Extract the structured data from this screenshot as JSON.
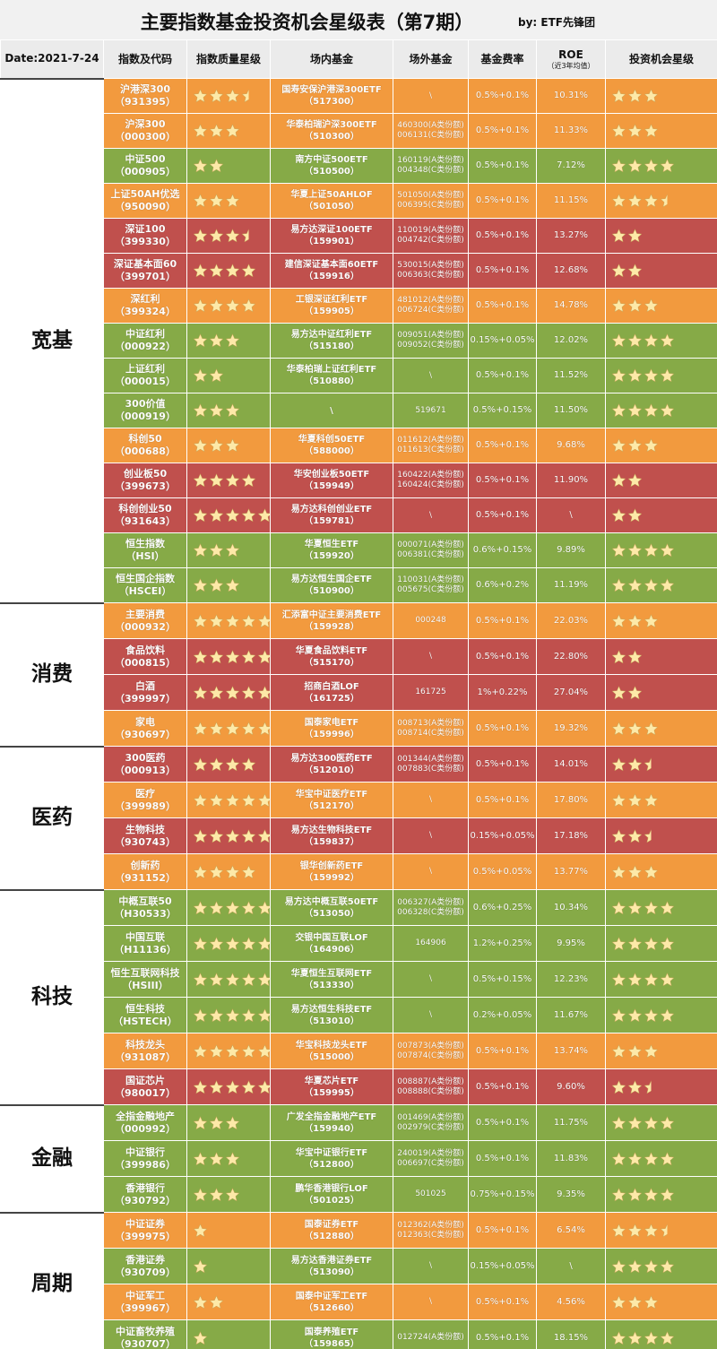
{
  "page": {
    "title": "主要指数基金投资机会星级表（第7期）",
    "byline": "by:  ETF先锋团"
  },
  "colors": {
    "orange": "#f29a3e",
    "green": "#86aa47",
    "red": "#c0504d",
    "star": "#fde9a8"
  },
  "header": {
    "date": "Date:2021-7-24",
    "index": "指数及代码",
    "quality": "指数质量星级",
    "etf": "场内基金",
    "otc": "场外基金",
    "fee": "基金费率",
    "roe": "ROE",
    "roe_sub": "（近3年均值）",
    "opportunity": "投资机会星级"
  },
  "categories": [
    {
      "name": "宽基",
      "rows": [
        {
          "color": "orange",
          "name": "沪港深300",
          "code": "（931395）",
          "quality": 3.5,
          "etf_name": "国寿安保沪港深300ETF",
          "etf_code": "（517300）",
          "otc": [
            "\\"
          ],
          "fee": "0.5%+0.1%",
          "roe": "10.31%",
          "opportunity": 3
        },
        {
          "color": "orange",
          "name": "沪深300",
          "code": "（000300）",
          "quality": 3,
          "etf_name": "华泰柏瑞沪深300ETF",
          "etf_code": "（510300）",
          "otc": [
            "460300(A类份额)",
            "006131(C类份额)"
          ],
          "fee": "0.5%+0.1%",
          "roe": "11.33%",
          "opportunity": 3
        },
        {
          "color": "green",
          "name": "中证500",
          "code": "（000905）",
          "quality": 2,
          "etf_name": "南方中证500ETF",
          "etf_code": "（510500）",
          "otc": [
            "160119(A类份额)",
            "004348(C类份额)"
          ],
          "fee": "0.5%+0.1%",
          "roe": "7.12%",
          "opportunity": 4
        },
        {
          "color": "orange",
          "name": "上证50AH优选",
          "code": "（950090）",
          "quality": 3,
          "etf_name": "华夏上证50AHLOF",
          "etf_code": "（501050）",
          "otc": [
            "501050(A类份额)",
            "006395(C类份额)"
          ],
          "fee": "0.5%+0.1%",
          "roe": "11.15%",
          "opportunity": 3.5
        },
        {
          "color": "red",
          "name": "深证100",
          "code": "（399330）",
          "quality": 3.5,
          "etf_name": "易方达深证100ETF",
          "etf_code": "（159901）",
          "otc": [
            "110019(A类份额)",
            "004742(C类份额)"
          ],
          "fee": "0.5%+0.1%",
          "roe": "13.27%",
          "opportunity": 2
        },
        {
          "color": "red",
          "name": "深证基本面60",
          "code": "（399701）",
          "quality": 4,
          "etf_name": "建信深证基本面60ETF",
          "etf_code": "（159916）",
          "otc": [
            "530015(A类份额)",
            "006363(C类份额)"
          ],
          "fee": "0.5%+0.1%",
          "roe": "12.68%",
          "opportunity": 2
        },
        {
          "color": "orange",
          "name": "深红利",
          "code": "（399324）",
          "quality": 4,
          "etf_name": "工银深证红利ETF",
          "etf_code": "（159905）",
          "otc": [
            "481012(A类份额)",
            "006724(C类份额)"
          ],
          "fee": "0.5%+0.1%",
          "roe": "14.78%",
          "opportunity": 3
        },
        {
          "color": "green",
          "name": "中证红利",
          "code": "（000922）",
          "quality": 3,
          "etf_name": "易方达中证红利ETF",
          "etf_code": "（515180）",
          "otc": [
            "009051(A类份额)",
            "009052(C类份额)"
          ],
          "fee": "0.15%+0.05%",
          "roe": "12.02%",
          "opportunity": 4
        },
        {
          "color": "green",
          "name": "上证红利",
          "code": "（000015）",
          "quality": 2,
          "etf_name": "华泰柏瑞上证红利ETF",
          "etf_code": "（510880）",
          "otc": [
            "\\"
          ],
          "fee": "0.5%+0.1%",
          "roe": "11.52%",
          "opportunity": 4
        },
        {
          "color": "green",
          "name": "300价值",
          "code": "（000919）",
          "quality": 3,
          "etf_name": "\\",
          "etf_code": "",
          "otc": [
            "519671"
          ],
          "fee": "0.5%+0.15%",
          "roe": "11.50%",
          "opportunity": 4
        },
        {
          "color": "orange",
          "name": "科创50",
          "code": "（000688）",
          "quality": 3,
          "etf_name": "华夏科创50ETF",
          "etf_code": "（588000）",
          "otc": [
            "011612(A类份额)",
            "011613(C类份额)"
          ],
          "fee": "0.5%+0.1%",
          "roe": "9.68%",
          "opportunity": 3
        },
        {
          "color": "red",
          "name": "创业板50",
          "code": "（399673）",
          "quality": 4,
          "etf_name": "华安创业板50ETF",
          "etf_code": "（159949）",
          "otc": [
            "160422(A类份额)",
            "160424(C类份额)"
          ],
          "fee": "0.5%+0.1%",
          "roe": "11.90%",
          "opportunity": 2
        },
        {
          "color": "red",
          "name": "科创创业50",
          "code": "（931643）",
          "quality": 5,
          "etf_name": "易方达科创创业ETF",
          "etf_code": "（159781）",
          "otc": [
            "\\"
          ],
          "fee": "0.5%+0.1%",
          "roe": "\\",
          "opportunity": 2
        },
        {
          "color": "green",
          "name": "恒生指数",
          "code": "（HSI）",
          "quality": 3,
          "etf_name": "华夏恒生ETF",
          "etf_code": "（159920）",
          "otc": [
            "000071(A类份额)",
            "006381(C类份额)"
          ],
          "fee": "0.6%+0.15%",
          "roe": "9.89%",
          "opportunity": 4
        },
        {
          "color": "green",
          "name": "恒生国企指数",
          "code": "（HSCEI）",
          "quality": 3,
          "etf_name": "易方达恒生国企ETF",
          "etf_code": "（510900）",
          "otc": [
            "110031(A类份额)",
            "005675(C类份额)"
          ],
          "fee": "0.6%+0.2%",
          "roe": "11.19%",
          "opportunity": 4
        }
      ]
    },
    {
      "name": "消费",
      "rows": [
        {
          "color": "orange",
          "name": "主要消费",
          "code": "（000932）",
          "quality": 5,
          "etf_name": "汇添富中证主要消费ETF",
          "etf_code": "（159928）",
          "otc": [
            "000248"
          ],
          "fee": "0.5%+0.1%",
          "roe": "22.03%",
          "opportunity": 3
        },
        {
          "color": "red",
          "name": "食品饮料",
          "code": "（000815）",
          "quality": 5,
          "etf_name": "华夏食品饮料ETF",
          "etf_code": "（515170）",
          "otc": [
            "\\"
          ],
          "fee": "0.5%+0.1%",
          "roe": "22.80%",
          "opportunity": 2
        },
        {
          "color": "red",
          "name": "白酒",
          "code": "（399997）",
          "quality": 5,
          "etf_name": "招商白酒LOF",
          "etf_code": "（161725）",
          "otc": [
            "161725"
          ],
          "fee": "1%+0.22%",
          "roe": "27.04%",
          "opportunity": 2
        },
        {
          "color": "orange",
          "name": "家电",
          "code": "（930697）",
          "quality": 5,
          "etf_name": "国泰家电ETF",
          "etf_code": "（159996）",
          "otc": [
            "008713(A类份额)",
            "008714(C类份额)"
          ],
          "fee": "0.5%+0.1%",
          "roe": "19.32%",
          "opportunity": 3
        }
      ]
    },
    {
      "name": "医药",
      "rows": [
        {
          "color": "red",
          "name": "300医药",
          "code": "（000913）",
          "quality": 4,
          "etf_name": "易方达300医药ETF",
          "etf_code": "（512010）",
          "otc": [
            "001344(A类份额)",
            "007883(C类份额)"
          ],
          "fee": "0.5%+0.1%",
          "roe": "14.01%",
          "opportunity": 2.5
        },
        {
          "color": "orange",
          "name": "医疗",
          "code": "（399989）",
          "quality": 5,
          "etf_name": "华宝中证医疗ETF",
          "etf_code": "（512170）",
          "otc": [
            "\\"
          ],
          "fee": "0.5%+0.1%",
          "roe": "17.80%",
          "opportunity": 3
        },
        {
          "color": "red",
          "name": "生物科技",
          "code": "（930743）",
          "quality": 5,
          "etf_name": "易方达生物科技ETF",
          "etf_code": "（159837）",
          "otc": [
            "\\"
          ],
          "fee": "0.15%+0.05%",
          "roe": "17.18%",
          "opportunity": 2.5
        },
        {
          "color": "orange",
          "name": "创新药",
          "code": "（931152）",
          "quality": 4,
          "etf_name": "银华创新药ETF",
          "etf_code": "（159992）",
          "otc": [
            "\\"
          ],
          "fee": "0.5%+0.05%",
          "roe": "13.77%",
          "opportunity": 3
        }
      ]
    },
    {
      "name": "科技",
      "rows": [
        {
          "color": "green",
          "name": "中概互联50",
          "code": "（H30533）",
          "quality": 5,
          "etf_name": "易方达中概互联50ETF",
          "etf_code": "（513050）",
          "otc": [
            "006327(A类份额)",
            "006328(C类份额)"
          ],
          "fee": "0.6%+0.25%",
          "roe": "10.34%",
          "opportunity": 4
        },
        {
          "color": "green",
          "name": "中国互联",
          "code": "（H11136）",
          "quality": 5,
          "etf_name": "交银中国互联LOF",
          "etf_code": "（164906）",
          "otc": [
            "164906"
          ],
          "fee": "1.2%+0.25%",
          "roe": "9.95%",
          "opportunity": 4
        },
        {
          "color": "green",
          "name": "恒生互联网科技",
          "code": "（HSIII）",
          "quality": 5,
          "etf_name": "华夏恒生互联网ETF",
          "etf_code": "（513330）",
          "otc": [
            "\\"
          ],
          "fee": "0.5%+0.15%",
          "roe": "12.23%",
          "opportunity": 4
        },
        {
          "color": "green",
          "name": "恒生科技",
          "code": "（HSTECH）",
          "quality": 5,
          "etf_name": "易方达恒生科技ETF",
          "etf_code": "（513010）",
          "otc": [
            "\\"
          ],
          "fee": "0.2%+0.05%",
          "roe": "11.67%",
          "opportunity": 4
        },
        {
          "color": "orange",
          "name": "科技龙头",
          "code": "（931087）",
          "quality": 5,
          "etf_name": "华宝科技龙头ETF",
          "etf_code": "（515000）",
          "otc": [
            "007873(A类份额)",
            "007874(C类份额)"
          ],
          "fee": "0.5%+0.1%",
          "roe": "13.74%",
          "opportunity": 3
        },
        {
          "color": "red",
          "name": "国证芯片",
          "code": "（980017）",
          "quality": 5,
          "etf_name": "华夏芯片ETF",
          "etf_code": "（159995）",
          "otc": [
            "008887(A类份额)",
            "008888(C类份额)"
          ],
          "fee": "0.5%+0.1%",
          "roe": "9.60%",
          "opportunity": 2.5
        }
      ]
    },
    {
      "name": "金融",
      "rows": [
        {
          "color": "green",
          "name": "全指金融地产",
          "code": "（000992）",
          "quality": 3,
          "etf_name": "广发全指金融地产ETF",
          "etf_code": "（159940）",
          "otc": [
            "001469(A类份额)",
            "002979(C类份额)"
          ],
          "fee": "0.5%+0.1%",
          "roe": "11.75%",
          "opportunity": 4
        },
        {
          "color": "green",
          "name": "中证银行",
          "code": "（399986）",
          "quality": 3,
          "etf_name": "华宝中证银行ETF",
          "etf_code": "（512800）",
          "otc": [
            "240019(A类份额)",
            "006697(C类份额)"
          ],
          "fee": "0.5%+0.1%",
          "roe": "11.83%",
          "opportunity": 4
        },
        {
          "color": "green",
          "name": "香港银行",
          "code": "（930792）",
          "quality": 3,
          "etf_name": "鹏华香港银行LOF",
          "etf_code": "（501025）",
          "otc": [
            "501025"
          ],
          "fee": "0.75%+0.15%",
          "roe": "9.35%",
          "opportunity": 4
        }
      ]
    },
    {
      "name": "周期",
      "rows": [
        {
          "color": "orange",
          "name": "中证证券",
          "code": "（399975）",
          "quality": 1,
          "etf_name": "国泰证券ETF",
          "etf_code": "（512880）",
          "otc": [
            "012362(A类份额)",
            "012363(C类份额)"
          ],
          "fee": "0.5%+0.1%",
          "roe": "6.54%",
          "opportunity": 3.5
        },
        {
          "color": "green",
          "name": "香港证券",
          "code": "（930709）",
          "quality": 1,
          "etf_name": "易方达香港证券ETF",
          "etf_code": "（513090）",
          "otc": [
            "\\"
          ],
          "fee": "0.15%+0.05%",
          "roe": "\\",
          "opportunity": 4
        },
        {
          "color": "orange",
          "name": "中证军工",
          "code": "（399967）",
          "quality": 2,
          "etf_name": "国泰中证军工ETF",
          "etf_code": "（512660）",
          "otc": [
            "\\"
          ],
          "fee": "0.5%+0.1%",
          "roe": "4.56%",
          "opportunity": 3
        },
        {
          "color": "green",
          "name": "中证畜牧养殖",
          "code": "（930707）",
          "quality": 1,
          "etf_name": "国泰养殖ETF",
          "etf_code": "（159865）",
          "otc": [
            "012724(A类份额)"
          ],
          "fee": "0.5%+0.1%",
          "roe": "18.15%",
          "opportunity": 4
        }
      ]
    }
  ]
}
